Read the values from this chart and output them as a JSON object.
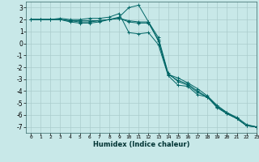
{
  "title": "",
  "xlabel": "Humidex (Indice chaleur)",
  "ylabel": "",
  "background_color": "#c8e8e8",
  "grid_color": "#aacccc",
  "line_color": "#006666",
  "xlim": [
    -0.5,
    23
  ],
  "ylim": [
    -7.5,
    3.5
  ],
  "xticks": [
    0,
    1,
    2,
    3,
    4,
    5,
    6,
    7,
    8,
    9,
    10,
    11,
    12,
    13,
    14,
    15,
    16,
    17,
    18,
    19,
    20,
    21,
    22,
    23
  ],
  "yticks": [
    -7,
    -6,
    -5,
    -4,
    -3,
    -2,
    -1,
    0,
    1,
    2,
    3
  ],
  "series": [
    {
      "x": [
        0,
        1,
        2,
        3,
        4,
        5,
        6,
        7,
        8,
        9,
        10,
        11,
        12,
        13,
        14,
        15,
        16,
        17,
        18,
        19,
        20,
        21,
        22,
        23
      ],
      "y": [
        2.0,
        2.0,
        2.0,
        2.1,
        2.0,
        2.0,
        2.1,
        2.1,
        2.2,
        2.5,
        0.9,
        0.8,
        0.9,
        -0.1,
        -2.7,
        -3.5,
        -3.6,
        -4.3,
        -4.5,
        -5.4,
        -5.9,
        -6.3,
        -6.9,
        -7.0
      ]
    },
    {
      "x": [
        0,
        1,
        2,
        3,
        4,
        5,
        6,
        7,
        8,
        9,
        10,
        11,
        12,
        13,
        14,
        15,
        16,
        17,
        18,
        19,
        20,
        21,
        22,
        23
      ],
      "y": [
        2.0,
        2.0,
        2.0,
        2.0,
        1.8,
        1.7,
        1.7,
        1.8,
        2.0,
        2.2,
        3.0,
        3.2,
        1.8,
        0.2,
        -2.6,
        -2.9,
        -3.3,
        -3.8,
        -4.4,
        -5.2,
        -5.8,
        -6.2,
        -6.8,
        -7.0
      ]
    },
    {
      "x": [
        0,
        1,
        2,
        3,
        4,
        5,
        6,
        7,
        8,
        9,
        10,
        11,
        12,
        13,
        14,
        15,
        16,
        17,
        18,
        19,
        20,
        21,
        22,
        23
      ],
      "y": [
        2.0,
        2.0,
        2.0,
        2.0,
        1.9,
        1.8,
        1.8,
        1.9,
        2.0,
        2.1,
        1.9,
        1.8,
        1.8,
        0.5,
        -2.5,
        -3.2,
        -3.5,
        -4.1,
        -4.5,
        -5.3,
        -5.9,
        -6.3,
        -6.9,
        -7.0
      ]
    },
    {
      "x": [
        0,
        1,
        2,
        3,
        4,
        5,
        6,
        7,
        8,
        9,
        10,
        11,
        12,
        13,
        14,
        15,
        16,
        17,
        18,
        19,
        20,
        21,
        22,
        23
      ],
      "y": [
        2.0,
        2.0,
        2.0,
        2.0,
        1.9,
        1.9,
        1.9,
        1.9,
        2.0,
        2.1,
        1.8,
        1.7,
        1.7,
        0.3,
        -2.6,
        -3.1,
        -3.4,
        -4.0,
        -4.5,
        -5.3,
        -5.8,
        -6.3,
        -6.9,
        -7.0
      ]
    }
  ]
}
